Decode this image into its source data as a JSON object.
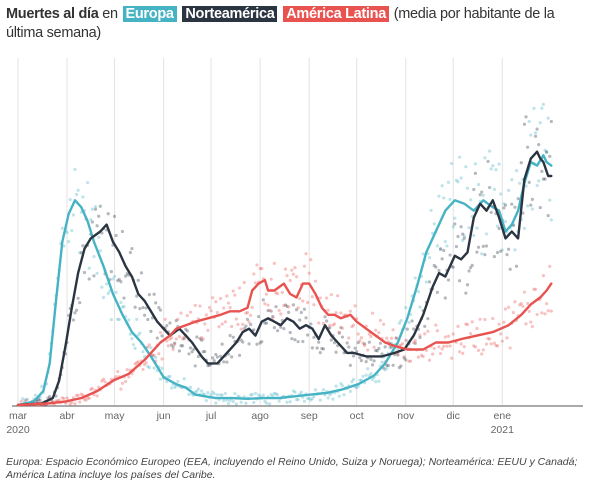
{
  "header": {
    "lead_bold": "Muertes al día",
    "lead_word": "en",
    "rest": "(media por habitante de la última semana)"
  },
  "footnote": "Europa: Espacio Económico Europeo (EEA, incluyendo el Reino Unido, Suiza y Noruega); Norteamérica: EEUU y Canadá; América Latina incluye los países del Caribe.",
  "chart_data": {
    "type": "line",
    "title": "",
    "x_unit": "days since 1 March 2020",
    "x_range": [
      0,
      357
    ],
    "y_range": [
      0,
      100
    ],
    "y_axis": "relative (no values printed)",
    "grid": "vertical lines at month starts",
    "x_ticks": [
      {
        "x": 0,
        "label": "mar",
        "sub": "2020"
      },
      {
        "x": 31,
        "label": "abr",
        "sub": ""
      },
      {
        "x": 61,
        "label": "may",
        "sub": ""
      },
      {
        "x": 92,
        "label": "jun",
        "sub": ""
      },
      {
        "x": 122,
        "label": "jul",
        "sub": ""
      },
      {
        "x": 153,
        "label": "ago",
        "sub": ""
      },
      {
        "x": 184,
        "label": "sep",
        "sub": ""
      },
      {
        "x": 214,
        "label": "oct",
        "sub": ""
      },
      {
        "x": 245,
        "label": "nov",
        "sub": ""
      },
      {
        "x": 275,
        "label": "dic",
        "sub": ""
      },
      {
        "x": 306,
        "label": "ene",
        "sub": "2021"
      }
    ],
    "series": [
      {
        "name": "Europa",
        "color": "#45b3c4",
        "points": [
          [
            0,
            0
          ],
          [
            10,
            1
          ],
          [
            16,
            4
          ],
          [
            20,
            12
          ],
          [
            24,
            30
          ],
          [
            28,
            47
          ],
          [
            32,
            55
          ],
          [
            36,
            59
          ],
          [
            40,
            57
          ],
          [
            44,
            53
          ],
          [
            48,
            47
          ],
          [
            54,
            40
          ],
          [
            60,
            32
          ],
          [
            66,
            26
          ],
          [
            72,
            21
          ],
          [
            78,
            18
          ],
          [
            84,
            14
          ],
          [
            88,
            11
          ],
          [
            92,
            8
          ],
          [
            96,
            7
          ],
          [
            100,
            6
          ],
          [
            106,
            5
          ],
          [
            112,
            3
          ],
          [
            118,
            2.5
          ],
          [
            125,
            2
          ],
          [
            135,
            2
          ],
          [
            145,
            1.8
          ],
          [
            155,
            2
          ],
          [
            165,
            2
          ],
          [
            175,
            2.5
          ],
          [
            185,
            3
          ],
          [
            195,
            3.5
          ],
          [
            205,
            4.5
          ],
          [
            215,
            6
          ],
          [
            225,
            8.5
          ],
          [
            232,
            12
          ],
          [
            240,
            18
          ],
          [
            246,
            25
          ],
          [
            252,
            34
          ],
          [
            258,
            44
          ],
          [
            264,
            50
          ],
          [
            270,
            56
          ],
          [
            276,
            59
          ],
          [
            282,
            58
          ],
          [
            288,
            56
          ],
          [
            294,
            59
          ],
          [
            300,
            57
          ],
          [
            304,
            56
          ],
          [
            308,
            50
          ],
          [
            312,
            52
          ],
          [
            316,
            56
          ],
          [
            320,
            64
          ],
          [
            324,
            70
          ],
          [
            328,
            69
          ],
          [
            332,
            72
          ],
          [
            334,
            70
          ],
          [
            337,
            69
          ]
        ]
      },
      {
        "name": "Norteamérica",
        "color": "#2b3542",
        "points": [
          [
            0,
            0
          ],
          [
            15,
            0.5
          ],
          [
            22,
            2
          ],
          [
            26,
            7
          ],
          [
            30,
            17
          ],
          [
            34,
            28
          ],
          [
            38,
            38
          ],
          [
            42,
            45
          ],
          [
            46,
            48
          ],
          [
            52,
            50
          ],
          [
            56,
            52
          ],
          [
            60,
            47
          ],
          [
            64,
            44
          ],
          [
            68,
            40
          ],
          [
            72,
            37
          ],
          [
            76,
            32
          ],
          [
            80,
            30
          ],
          [
            84,
            27
          ],
          [
            88,
            24
          ],
          [
            92,
            22
          ],
          [
            96,
            20
          ],
          [
            102,
            22
          ],
          [
            106,
            20
          ],
          [
            110,
            18
          ],
          [
            116,
            14
          ],
          [
            120,
            12
          ],
          [
            126,
            12
          ],
          [
            132,
            15
          ],
          [
            138,
            18
          ],
          [
            142,
            21
          ],
          [
            146,
            22
          ],
          [
            150,
            20
          ],
          [
            154,
            24
          ],
          [
            158,
            25
          ],
          [
            162,
            24
          ],
          [
            166,
            23
          ],
          [
            170,
            25
          ],
          [
            174,
            24
          ],
          [
            178,
            22
          ],
          [
            182,
            23
          ],
          [
            186,
            22
          ],
          [
            190,
            19
          ],
          [
            194,
            23
          ],
          [
            198,
            20
          ],
          [
            202,
            18
          ],
          [
            208,
            15
          ],
          [
            212,
            15
          ],
          [
            220,
            14
          ],
          [
            230,
            14
          ],
          [
            238,
            15
          ],
          [
            244,
            16
          ],
          [
            250,
            20
          ],
          [
            256,
            26
          ],
          [
            262,
            34
          ],
          [
            266,
            38
          ],
          [
            270,
            37
          ],
          [
            276,
            43
          ],
          [
            280,
            42
          ],
          [
            284,
            44
          ],
          [
            288,
            54
          ],
          [
            292,
            58
          ],
          [
            296,
            56
          ],
          [
            300,
            59
          ],
          [
            304,
            54
          ],
          [
            308,
            48
          ],
          [
            312,
            50
          ],
          [
            316,
            48
          ],
          [
            320,
            65
          ],
          [
            324,
            71
          ],
          [
            328,
            73
          ],
          [
            330,
            71
          ],
          [
            332,
            70
          ],
          [
            335,
            66
          ],
          [
            337,
            66
          ]
        ]
      },
      {
        "name": "América Latina",
        "color": "#e8524f",
        "points": [
          [
            0,
            0
          ],
          [
            20,
            0.5
          ],
          [
            30,
            1
          ],
          [
            40,
            2
          ],
          [
            50,
            4
          ],
          [
            60,
            7
          ],
          [
            70,
            9
          ],
          [
            80,
            13
          ],
          [
            90,
            18
          ],
          [
            96,
            20
          ],
          [
            100,
            22
          ],
          [
            106,
            23
          ],
          [
            112,
            24
          ],
          [
            120,
            25
          ],
          [
            128,
            26
          ],
          [
            134,
            27
          ],
          [
            140,
            27
          ],
          [
            145,
            28
          ],
          [
            148,
            33
          ],
          [
            152,
            35
          ],
          [
            156,
            36
          ],
          [
            158,
            33
          ],
          [
            162,
            33
          ],
          [
            168,
            35
          ],
          [
            172,
            32
          ],
          [
            176,
            31
          ],
          [
            180,
            35
          ],
          [
            184,
            35
          ],
          [
            188,
            32
          ],
          [
            192,
            28
          ],
          [
            196,
            26
          ],
          [
            200,
            26
          ],
          [
            204,
            25
          ],
          [
            210,
            26
          ],
          [
            214,
            24
          ],
          [
            220,
            22
          ],
          [
            226,
            20
          ],
          [
            232,
            18
          ],
          [
            238,
            17
          ],
          [
            246,
            16
          ],
          [
            256,
            16
          ],
          [
            264,
            18
          ],
          [
            272,
            18
          ],
          [
            280,
            19
          ],
          [
            290,
            20
          ],
          [
            300,
            21
          ],
          [
            310,
            23
          ],
          [
            318,
            26
          ],
          [
            324,
            29
          ],
          [
            330,
            31
          ],
          [
            334,
            33
          ],
          [
            337,
            35
          ]
        ]
      }
    ]
  }
}
